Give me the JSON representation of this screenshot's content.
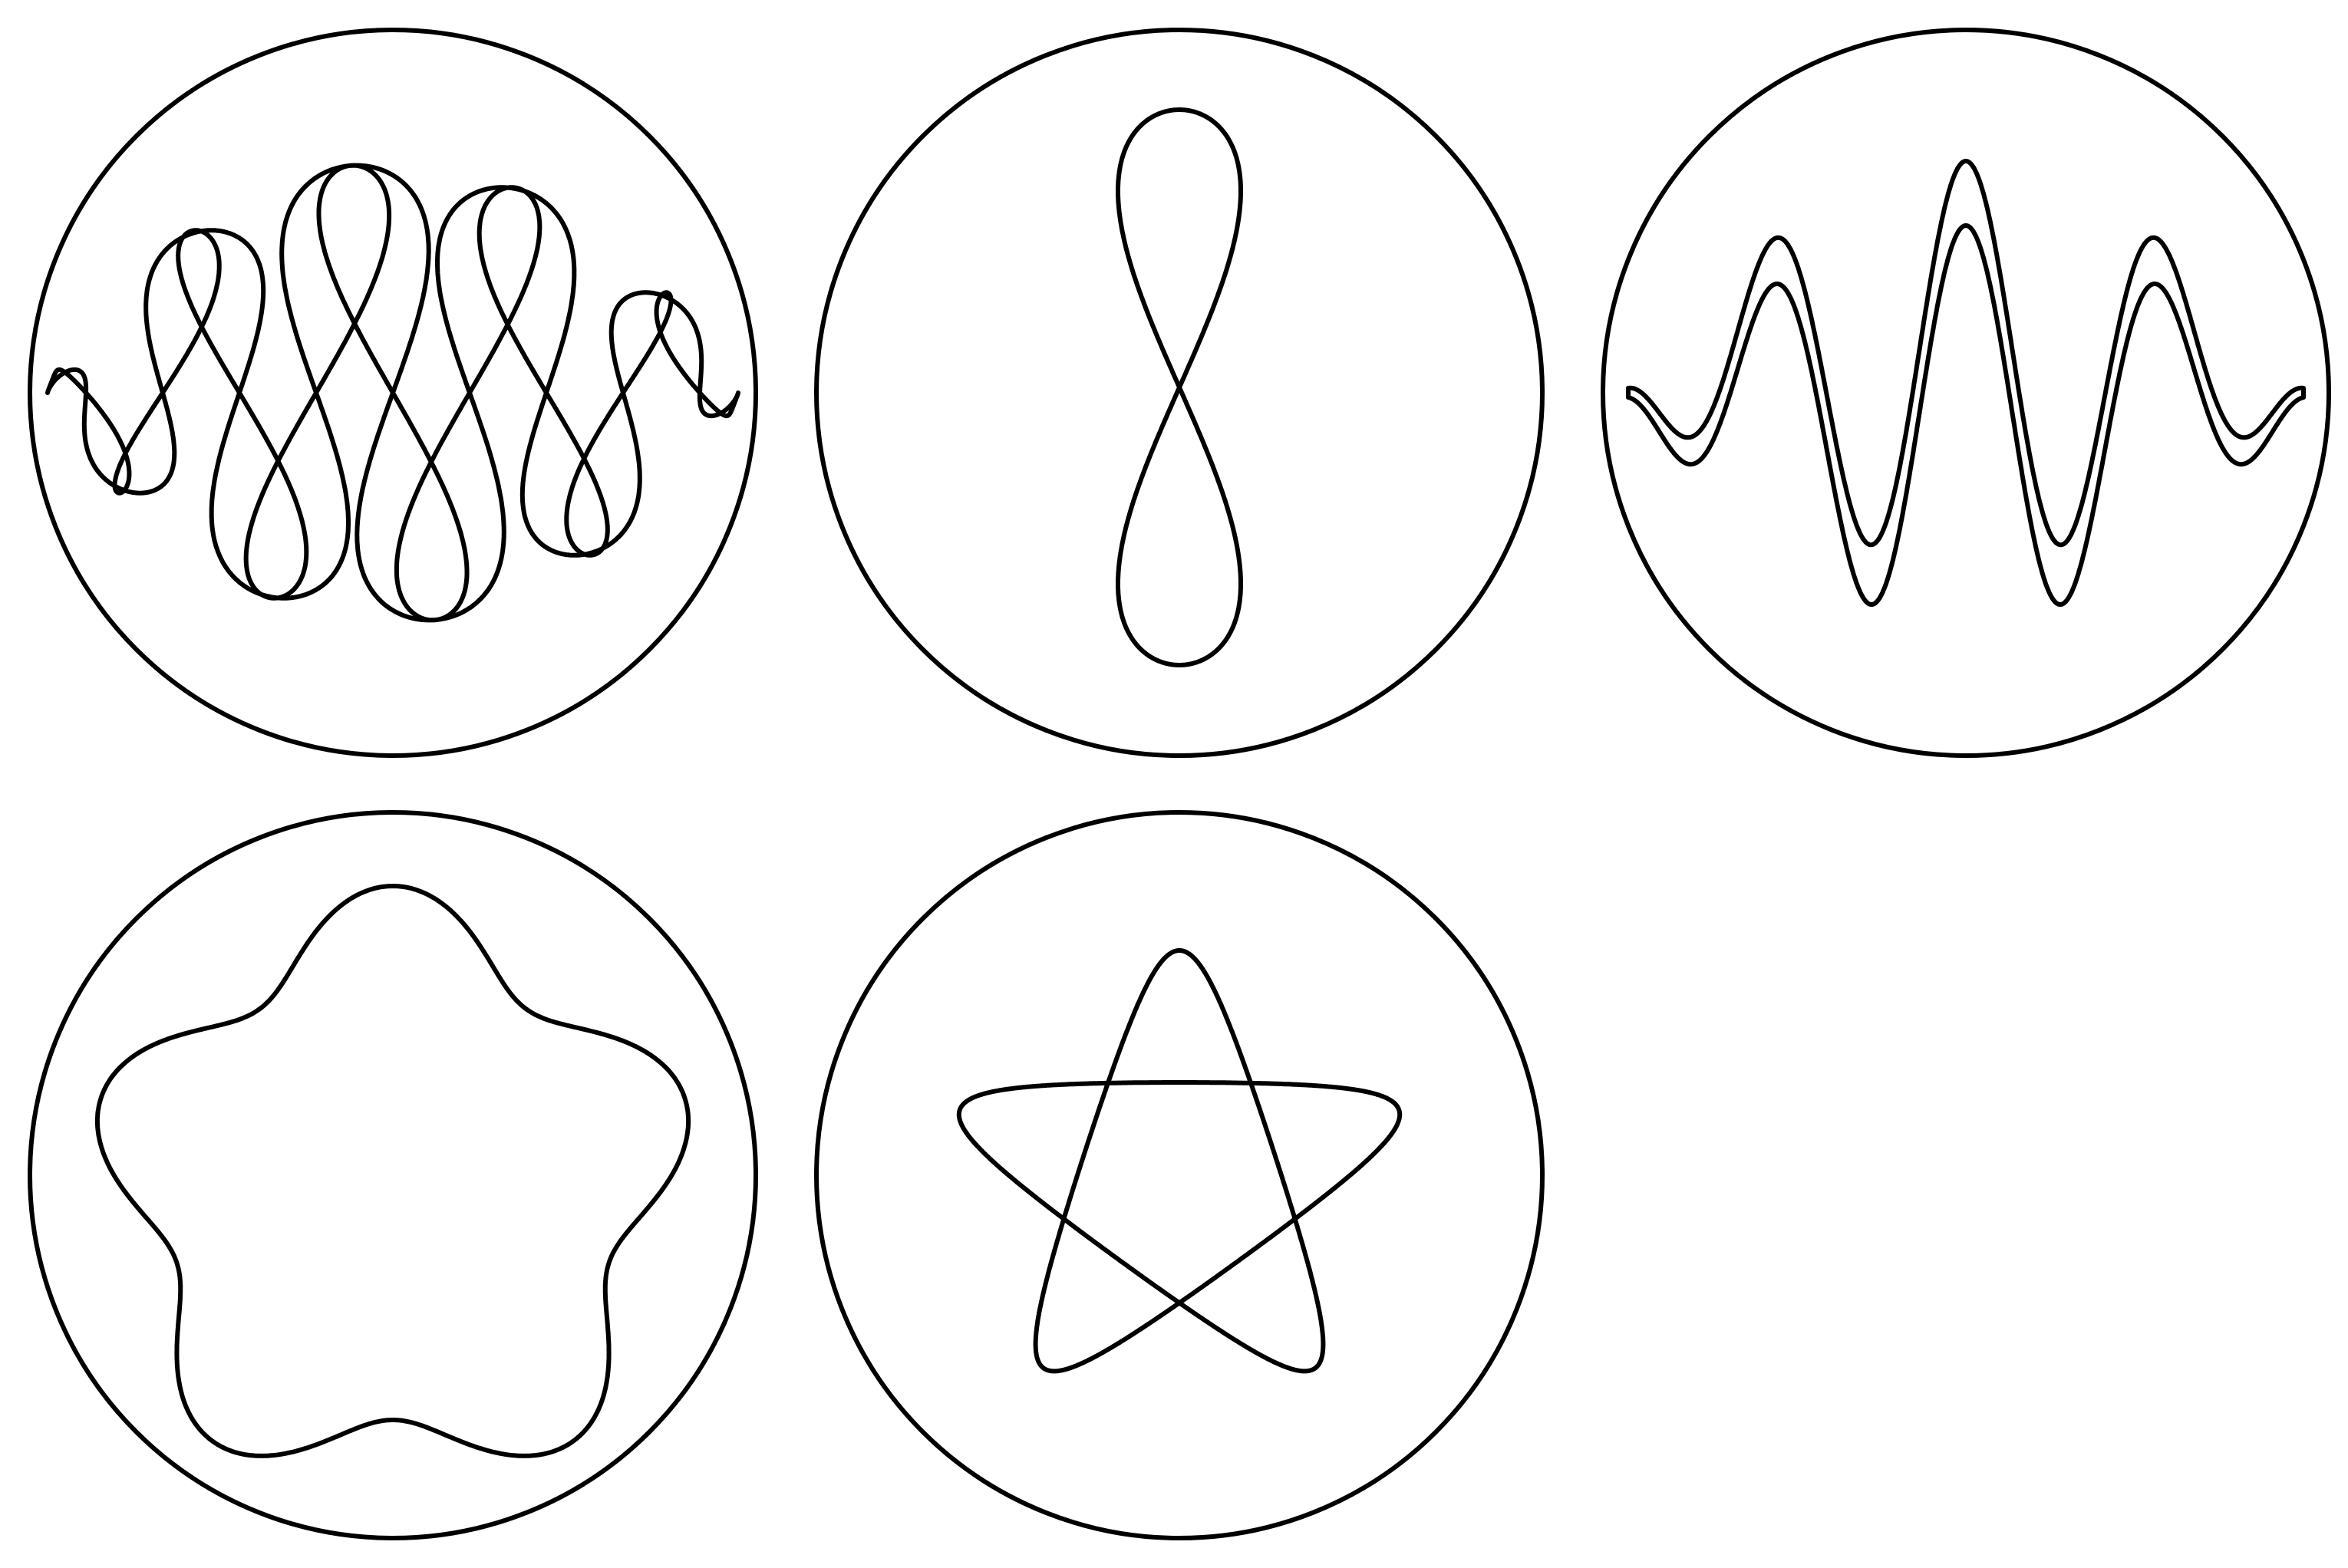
{
  "figure": {
    "stroke_color": "#000000",
    "background_color": "#ffffff",
    "panels": [
      {
        "id": "panel-1",
        "description_key": "spiral-loops-with-boundary-spirals"
      },
      {
        "id": "panel-2",
        "description_key": "figure-eight"
      },
      {
        "id": "panel-3",
        "description_key": "meander-with-boundary-spirals"
      },
      {
        "id": "panel-4",
        "description_key": "rounded-pentagon"
      },
      {
        "id": "panel-5",
        "description_key": "five-lobed-rosette"
      }
    ]
  }
}
